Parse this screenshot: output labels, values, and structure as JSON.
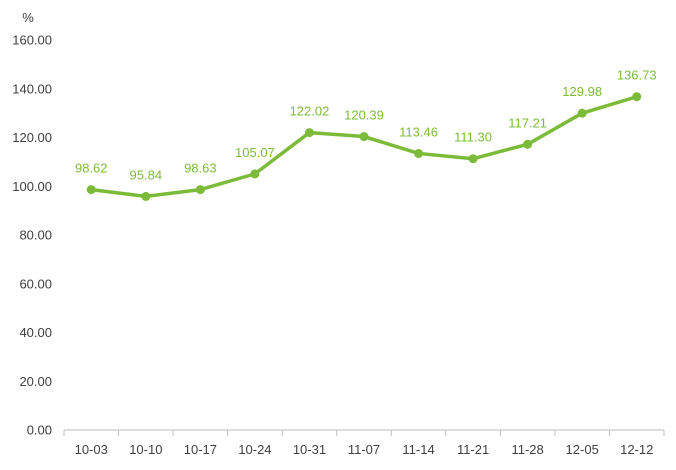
{
  "chart_data": {
    "type": "line",
    "title": "",
    "xlabel": "",
    "ylabel": "%",
    "categories": [
      "10-03",
      "10-10",
      "10-17",
      "10-24",
      "10-31",
      "11-07",
      "11-14",
      "11-21",
      "11-28",
      "12-05",
      "12-12"
    ],
    "series": [
      {
        "values": [
          98.62,
          95.84,
          98.63,
          105.07,
          122.02,
          120.39,
          113.46,
          111.3,
          117.21,
          129.98,
          136.73
        ],
        "labels": [
          "98.62",
          "95.84",
          "98.63",
          "105.07",
          "122.02",
          "120.39",
          "113.46",
          "111.30",
          "117.21",
          "129.98",
          "136.73"
        ],
        "color": "#7cbb3a"
      }
    ],
    "ylim": [
      0,
      160
    ],
    "yticks": [
      "0.00",
      "20.00",
      "40.00",
      "60.00",
      "80.00",
      "100.00",
      "120.00",
      "140.00",
      "160.00"
    ],
    "grid": false,
    "legend": "none",
    "axis_color": "#bfbfbf",
    "text_color": "#404040"
  }
}
